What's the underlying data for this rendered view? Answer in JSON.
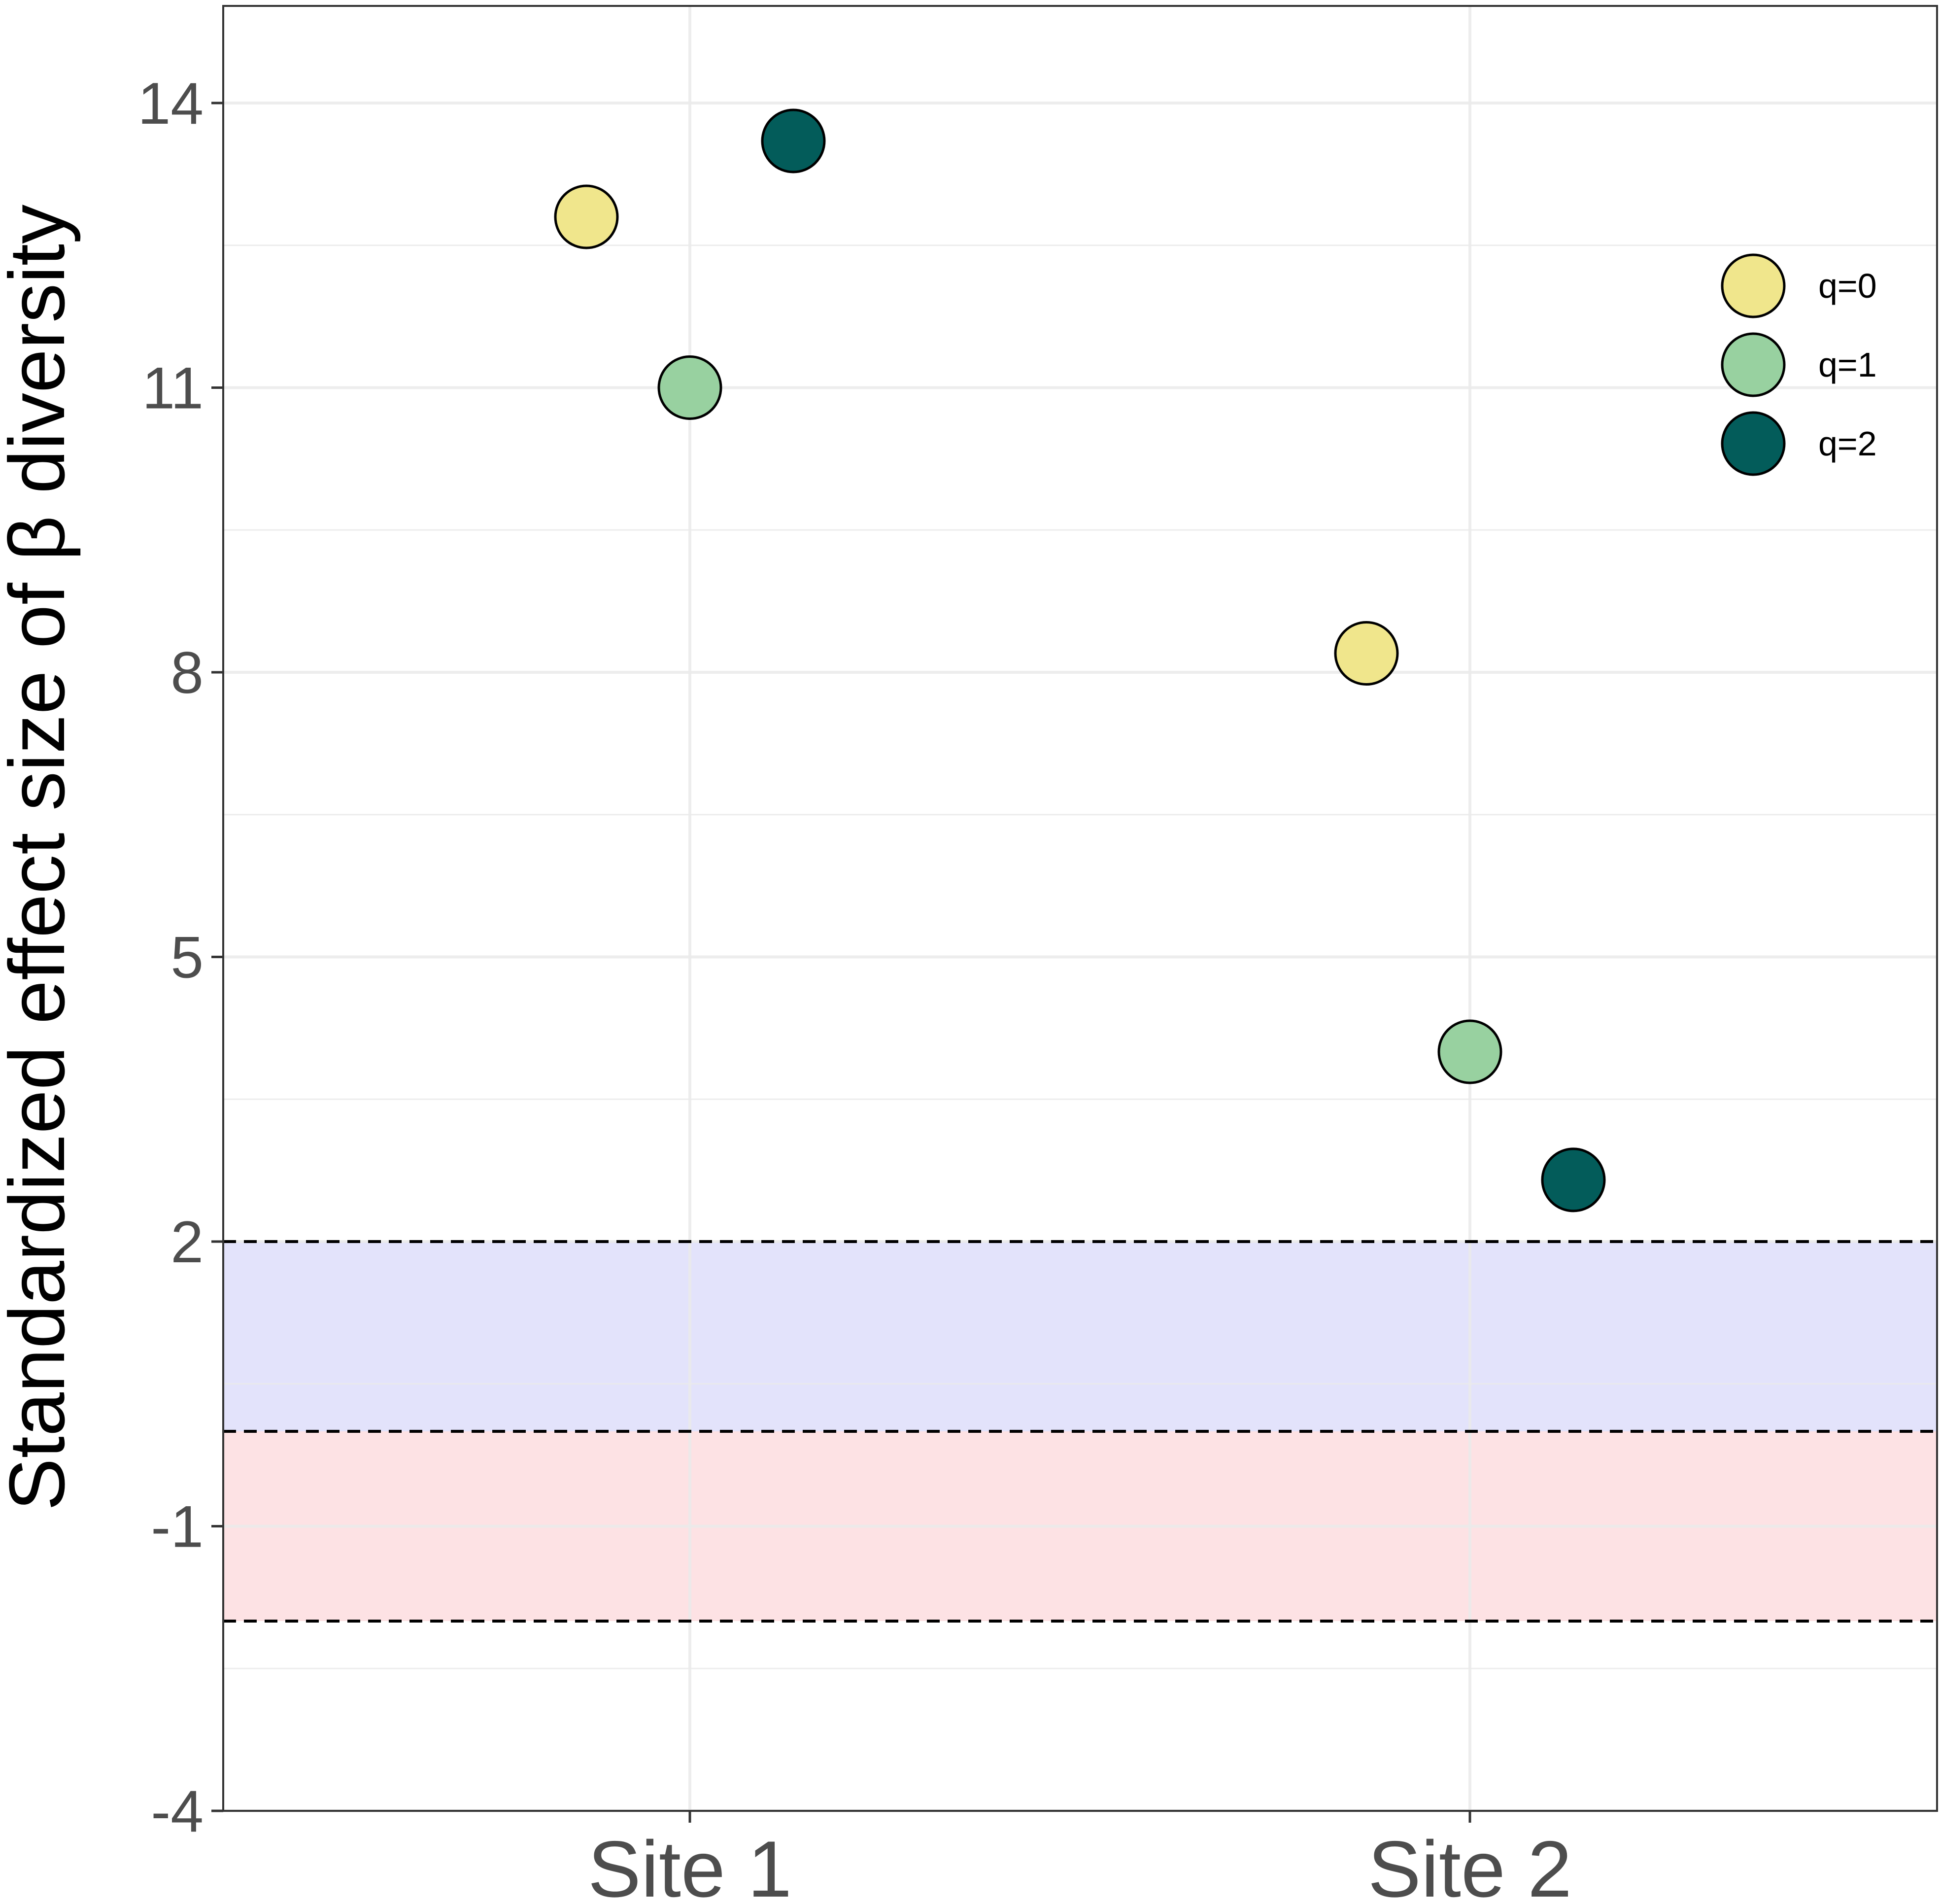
{
  "chart_data": {
    "type": "scatter",
    "title": "",
    "xlabel": "",
    "ylabel": "Standardized effect size of β diversity",
    "categories": [
      "Site 1",
      "Site 2"
    ],
    "ylim": [
      -4,
      15
    ],
    "yticks": [
      14,
      11,
      8,
      5,
      2,
      -1,
      -4
    ],
    "ytick_labels": [
      "14",
      "11",
      "8",
      "5",
      "2",
      "-1",
      "-4"
    ],
    "grid": true,
    "reference_lines": [
      2,
      0,
      -2
    ],
    "bands": [
      {
        "from": 0,
        "to": 2,
        "color": "#e3e3fb"
      },
      {
        "from": -2,
        "to": 0,
        "color": "#fde2e4"
      }
    ],
    "series": [
      {
        "name": "q=0",
        "color": "#f0e68c",
        "dodge": -1,
        "values": [
          12.8,
          8.2
        ]
      },
      {
        "name": "q=1",
        "color": "#98d1a0",
        "dodge": 0,
        "values": [
          11.0,
          4.0
        ]
      },
      {
        "name": "q=2",
        "color": "#035c5a",
        "dodge": 1,
        "values": [
          13.6,
          2.65
        ]
      }
    ],
    "legend": {
      "position": "top-right",
      "entries": [
        "q=0",
        "q=1",
        "q=2"
      ]
    }
  }
}
